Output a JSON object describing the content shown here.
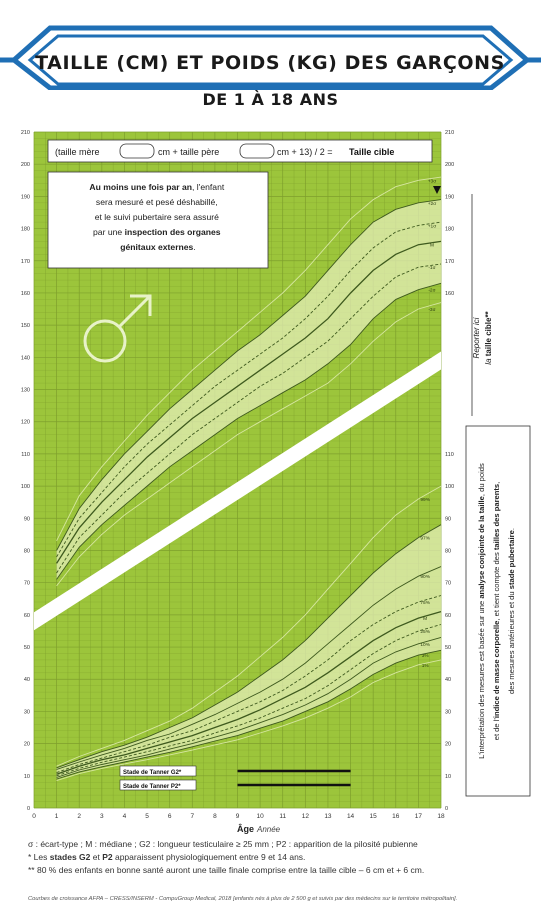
{
  "title": "TAILLE (CM) ET POIDS (KG) DES GARÇONS",
  "subtitle": "DE 1 À 18 ANS",
  "colors": {
    "banner_blue": "#1f6fb5",
    "chart_green": "#9cc53b",
    "band_fill": "#e4eeb8",
    "curve_dark": "#3e5a1e",
    "grid": "#7e9f2c"
  },
  "formula": {
    "part1": "(taille mère",
    "part2": "cm + taille père",
    "part3": "cm + 13) / 2 =",
    "result": "Taille cible"
  },
  "info_box": {
    "line1_bold": "Au moins une fois par an",
    "line1_rest": ", l'enfant",
    "line2": "sera mesuré et pesé déshabillé,",
    "line3": "et le suivi pubertaire sera assuré",
    "line4_pre": "par une ",
    "line4_bold": "inspection des organes",
    "line5_bold": "génitaux externes",
    "line5_rest": "."
  },
  "right_vertical_note": {
    "line1": "Reporter ici",
    "line2_pre": "la ",
    "line2_bold": "taille cible**"
  },
  "interpretation_box": {
    "line1_pre": "L'interprétation des mesures est basée sur une ",
    "line1_bold1": "analyse conjointe de la taille",
    "line1_mid": ", du poids",
    "line2_pre": "et de l'",
    "line2_bold1": "indice de masse corporelle",
    "line2_mid": ", et tient compte des ",
    "line2_bold2": "tailles des parents",
    "line2_end": ",",
    "line3_pre": "des mesures antérieures et du ",
    "line3_bold": "stade pubertaire",
    "line3_end": "."
  },
  "tanner": {
    "g2_label": "Stade de Tanner G2*",
    "p2_label": "Stade de Tanner P2*",
    "g2_range": [
      9,
      14
    ],
    "p2_range": [
      9,
      14
    ]
  },
  "footnotes": {
    "line1": "σ : écart-type ; M : médiane ; G2 : longueur testiculaire ≥ 25 mm ; P2 : apparition de la pilosité pubienne",
    "line2_pre": "* Les ",
    "line2_bold1": "stades G2",
    "line2_mid": " et ",
    "line2_bold2": "P2",
    "line2_end": " apparaissent physiologiquement entre 9 et 14 ans.",
    "line3": "** 80 % des enfants en bonne santé auront une taille finale comprise entre la taille cible – 6 cm et + 6 cm."
  },
  "source": "Courbes de croissance AFPA – CRESS/INSERM - CompuGroup Medical, 2018 [enfants nés à plus de 2 500 g et suivis par des médecins sur le territoire métropolitain].",
  "chart_data": {
    "type": "line",
    "xlabel": "Âge",
    "xlabel_unit": "Année",
    "xlim": [
      0,
      18
    ],
    "ylim": [
      0,
      210
    ],
    "x_ticks": [
      0,
      1,
      2,
      3,
      4,
      5,
      6,
      7,
      8,
      9,
      10,
      11,
      12,
      13,
      14,
      15,
      16,
      17,
      18
    ],
    "y_ticks_left": [
      0,
      10,
      20,
      30,
      40,
      50,
      60,
      70,
      80,
      90,
      100,
      110,
      120,
      130,
      140,
      150,
      160,
      170,
      180,
      190,
      200,
      210
    ],
    "y_ticks_right_height": [
      160,
      170,
      180,
      190,
      200,
      210
    ],
    "y_ticks_right_weight": [
      0,
      10,
      20,
      30,
      40,
      50,
      60,
      70,
      80,
      90,
      100,
      110
    ],
    "height_curves": {
      "x": [
        1,
        2,
        3,
        4,
        5,
        6,
        7,
        8,
        9,
        10,
        11,
        12,
        13,
        14,
        15,
        16,
        17,
        18
      ],
      "series": [
        {
          "name": "+3σ",
          "values": [
            83,
            97,
            106,
            114,
            122,
            129,
            136,
            142,
            148,
            154,
            160,
            167,
            175,
            183,
            189,
            193,
            195,
            196
          ]
        },
        {
          "name": "+2σ",
          "values": [
            80,
            93,
            102,
            110,
            117,
            124,
            130,
            136,
            142,
            147,
            153,
            159,
            167,
            175,
            182,
            186,
            188,
            189
          ]
        },
        {
          "name": "+1σ",
          "values": [
            78,
            90,
            98,
            106,
            113,
            119,
            125,
            131,
            136,
            141,
            146,
            152,
            159,
            167,
            174,
            179,
            181,
            182
          ]
        },
        {
          "name": "M",
          "values": [
            76,
            87,
            95,
            102,
            109,
            115,
            121,
            126,
            131,
            136,
            141,
            146,
            152,
            160,
            167,
            172,
            175,
            176
          ]
        },
        {
          "name": "-1σ",
          "values": [
            73,
            84,
            91,
            98,
            104,
            110,
            116,
            121,
            126,
            131,
            135,
            140,
            145,
            152,
            159,
            165,
            168,
            169
          ]
        },
        {
          "name": "-2σ",
          "values": [
            71,
            81,
            88,
            94,
            100,
            106,
            111,
            116,
            121,
            125,
            129,
            133,
            138,
            144,
            152,
            158,
            161,
            163
          ]
        },
        {
          "name": "-3σ",
          "values": [
            69,
            78,
            85,
            91,
            96,
            101,
            106,
            111,
            116,
            120,
            124,
            128,
            132,
            138,
            145,
            151,
            155,
            157
          ]
        }
      ],
      "right_labels": [
        "+3σ",
        "+2σ",
        "+1σ",
        "M",
        "-1σ",
        "-2σ",
        "-3σ"
      ]
    },
    "weight_curves": {
      "x": [
        1,
        2,
        3,
        4,
        5,
        6,
        7,
        8,
        9,
        10,
        11,
        12,
        13,
        14,
        15,
        16,
        17,
        18
      ],
      "series": [
        {
          "name": "99%",
          "values": [
            13,
            16,
            18.5,
            21,
            24,
            27,
            31,
            36,
            41,
            47,
            53,
            60,
            68,
            76,
            84,
            91,
            96,
            100
          ]
        },
        {
          "name": "97%",
          "values": [
            12.5,
            15,
            17.5,
            19.5,
            22,
            25,
            28,
            32,
            36,
            41,
            46,
            52,
            59,
            66,
            73,
            79,
            84,
            88
          ]
        },
        {
          "name": "90%",
          "values": [
            12,
            14.3,
            16.5,
            18.5,
            21,
            23,
            26,
            29,
            32.5,
            36,
            40,
            45,
            51,
            57,
            63,
            68,
            72,
            75
          ]
        },
        {
          "name": "75%",
          "values": [
            11,
            13.5,
            15.5,
            17.5,
            19.5,
            22,
            24,
            27,
            30,
            33,
            36.5,
            41,
            46,
            52,
            57,
            61,
            64,
            66
          ]
        },
        {
          "name": "M",
          "values": [
            10.5,
            13,
            15,
            16.5,
            18.5,
            20.5,
            22.5,
            25,
            27.5,
            30.5,
            34,
            37.5,
            42,
            47,
            52,
            56,
            59,
            61
          ]
        },
        {
          "name": "25%",
          "values": [
            10,
            12.3,
            14.2,
            15.8,
            17.5,
            19.3,
            21,
            23.3,
            25.5,
            28,
            31,
            34,
            38,
            43,
            48,
            52,
            55,
            57
          ]
        },
        {
          "name": "10%",
          "values": [
            9.5,
            11.8,
            13.5,
            15,
            16.5,
            18.3,
            20,
            22,
            24,
            26.5,
            29,
            32,
            35.5,
            40,
            45,
            48.5,
            51,
            53
          ]
        },
        {
          "name": "3%",
          "values": [
            9,
            11.2,
            12.8,
            14.3,
            15.8,
            17.3,
            19,
            20.8,
            22.5,
            24.8,
            27,
            30,
            33,
            37,
            41.5,
            45,
            47.5,
            49
          ]
        },
        {
          "name": "1%",
          "values": [
            8.5,
            10.7,
            12.3,
            13.7,
            15,
            16.5,
            18,
            19.6,
            21.2,
            23.3,
            25.5,
            28,
            31,
            34.5,
            39,
            42,
            44.5,
            46
          ]
        }
      ],
      "right_labels": [
        "99%",
        "97%",
        "90%",
        "75%",
        "M",
        "25%",
        "10%",
        "3%",
        "1%"
      ]
    }
  }
}
